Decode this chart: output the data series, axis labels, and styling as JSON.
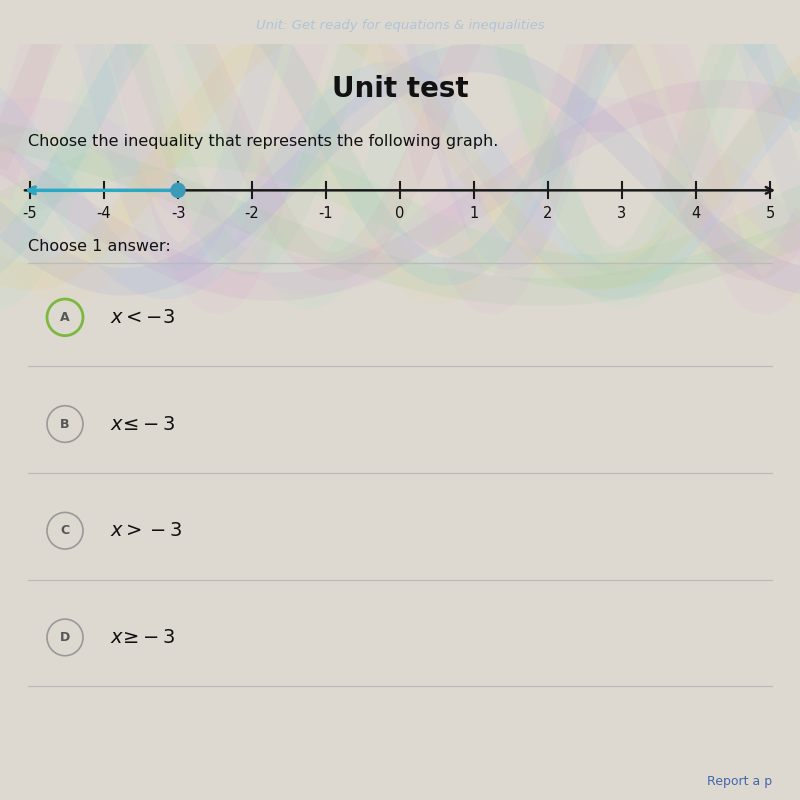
{
  "title_top": "Unit: Get ready for equations & inequalities",
  "title_main": "Unit test",
  "question": "Choose the inequality that represents the following graph.",
  "number_line": {
    "x_min": -5,
    "x_max": 5,
    "dot_value": -3,
    "dot_filled": true,
    "arrow_direction": "left",
    "line_color": "#2aa8c4",
    "dot_color": "#3a9ab8",
    "axis_color": "#1a1a1a"
  },
  "choose_label": "Choose 1 answer:",
  "choices": [
    {
      "label": "A",
      "text": "x < -3",
      "highlighted": true
    },
    {
      "label": "B",
      "text": "x ≤ -3",
      "highlighted": false
    },
    {
      "label": "C",
      "text": "x > -3",
      "highlighted": false
    },
    {
      "label": "D",
      "text": "x ≥ -3",
      "highlighted": false
    }
  ],
  "bg_color": "#ddd9d0",
  "top_bar_color": "#1a1a2e",
  "top_bar_text_color": "#b0c4d8",
  "footer_text": "Report a p",
  "wave_colors": [
    "#c8e8c0",
    "#e8d0e8",
    "#c8d8f0",
    "#f0e8c8"
  ]
}
